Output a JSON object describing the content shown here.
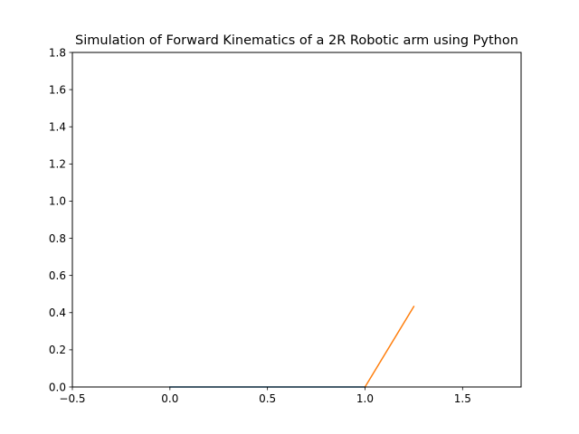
{
  "chart_data": {
    "type": "line",
    "title": "Simulation of Forward Kinematics of a 2R Robotic arm using Python",
    "xlabel": "",
    "ylabel": "",
    "xlim": [
      -0.5,
      1.8
    ],
    "ylim": [
      0.0,
      1.8
    ],
    "xticks": [
      -0.5,
      0.0,
      0.5,
      1.0,
      1.5
    ],
    "xtick_labels": [
      "−0.5",
      "0.0",
      "0.5",
      "1.0",
      "1.5"
    ],
    "yticks": [
      0.0,
      0.2,
      0.4,
      0.6,
      0.8,
      1.0,
      1.2,
      1.4,
      1.6,
      1.8
    ],
    "ytick_labels": [
      "0.0",
      "0.2",
      "0.4",
      "0.6",
      "0.8",
      "1.0",
      "1.2",
      "1.4",
      "1.6",
      "1.8"
    ],
    "grid": false,
    "legend": "none",
    "series": [
      {
        "color": "#1f77b4",
        "x": [
          0.0,
          1.0
        ],
        "y": [
          0.0,
          0.0
        ]
      },
      {
        "color": "#ff7f0e",
        "x": [
          1.0,
          1.25
        ],
        "y": [
          0.0,
          0.433
        ]
      }
    ]
  }
}
